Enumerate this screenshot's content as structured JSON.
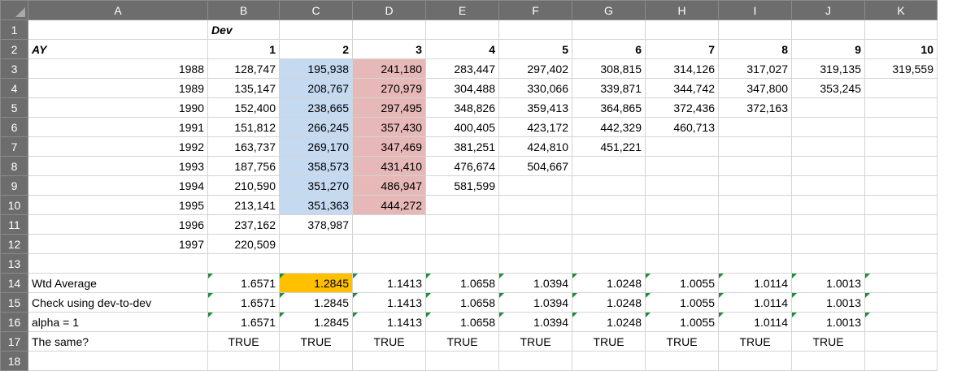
{
  "columns": [
    "A",
    "B",
    "C",
    "D",
    "E",
    "F",
    "G",
    "H",
    "I",
    "J",
    "K"
  ],
  "rows": [
    [
      "",
      "Dev",
      "",
      "",
      "",
      "",
      "",
      "",
      "",
      "",
      ""
    ],
    [
      "AY",
      "1",
      "2",
      "3",
      "4",
      "5",
      "6",
      "7",
      "8",
      "9",
      "10"
    ],
    [
      "1988",
      "128,747",
      "195,938",
      "241,180",
      "283,447",
      "297,402",
      "308,815",
      "314,126",
      "317,027",
      "319,135",
      "319,559"
    ],
    [
      "1989",
      "135,147",
      "208,767",
      "270,979",
      "304,488",
      "330,066",
      "339,871",
      "344,742",
      "347,800",
      "353,245",
      ""
    ],
    [
      "1990",
      "152,400",
      "238,665",
      "297,495",
      "348,826",
      "359,413",
      "364,865",
      "372,436",
      "372,163",
      "",
      ""
    ],
    [
      "1991",
      "151,812",
      "266,245",
      "357,430",
      "400,405",
      "423,172",
      "442,329",
      "460,713",
      "",
      "",
      ""
    ],
    [
      "1992",
      "163,737",
      "269,170",
      "347,469",
      "381,251",
      "424,810",
      "451,221",
      "",
      "",
      "",
      ""
    ],
    [
      "1993",
      "187,756",
      "358,573",
      "431,410",
      "476,674",
      "504,667",
      "",
      "",
      "",
      "",
      ""
    ],
    [
      "1994",
      "210,590",
      "351,270",
      "486,947",
      "581,599",
      "",
      "",
      "",
      "",
      "",
      ""
    ],
    [
      "1995",
      "213,141",
      "351,363",
      "444,272",
      "",
      "",
      "",
      "",
      "",
      "",
      ""
    ],
    [
      "1996",
      "237,162",
      "378,987",
      "",
      "",
      "",
      "",
      "",
      "",
      "",
      ""
    ],
    [
      "1997",
      "220,509",
      "",
      "",
      "",
      "",
      "",
      "",
      "",
      "",
      ""
    ],
    [
      "",
      "",
      "",
      "",
      "",
      "",
      "",
      "",
      "",
      "",
      ""
    ],
    [
      "Wtd Average",
      "1.6571",
      "1.2845",
      "1.1413",
      "1.0658",
      "1.0394",
      "1.0248",
      "1.0055",
      "1.0114",
      "1.0013",
      ""
    ],
    [
      "Check using dev-to-dev",
      "1.6571",
      "1.2845",
      "1.1413",
      "1.0658",
      "1.0394",
      "1.0248",
      "1.0055",
      "1.0114",
      "1.0013",
      ""
    ],
    [
      "alpha = 1",
      "1.6571",
      "1.2845",
      "1.1413",
      "1.0658",
      "1.0394",
      "1.0248",
      "1.0055",
      "1.0114",
      "1.0013",
      ""
    ],
    [
      "The same?",
      "TRUE",
      "TRUE",
      "TRUE",
      "TRUE",
      "TRUE",
      "TRUE",
      "TRUE",
      "TRUE",
      "TRUE",
      ""
    ],
    [
      "",
      "",
      "",
      "",
      "",
      "",
      "",
      "",
      "",
      "",
      ""
    ]
  ],
  "row_numbers": [
    "1",
    "2",
    "3",
    "4",
    "5",
    "6",
    "7",
    "8",
    "9",
    "10",
    "11",
    "12",
    "13",
    "14",
    "15",
    "16",
    "17",
    "18"
  ],
  "colors": {
    "header_bg": "#6d6d6d",
    "blue_fill": "#c5d9f1",
    "pink_fill": "#e6b8b7",
    "selected_fill": "#ffc000",
    "note_marker": "#1e8c3a"
  }
}
